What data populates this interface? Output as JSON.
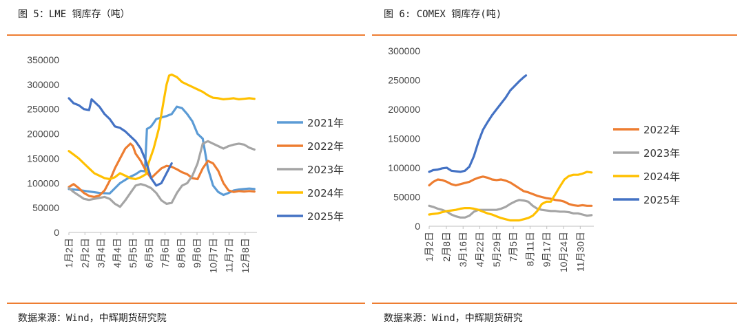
{
  "left": {
    "title": "图 5：LME 铜库存（吨）",
    "source": "数据来源：Wind，中辉期货研究院"
  },
  "right": {
    "title": "图 6:  COMEX 铜库存(吨)",
    "source": "数据来源：Wind，中辉期货研究"
  },
  "colors": {
    "rule": "#ee7d31"
  },
  "chart_data": [
    {
      "type": "line",
      "title": "",
      "xlabel": "",
      "ylabel": "",
      "ylim": [
        0,
        350000
      ],
      "yticks": [
        "350000",
        "300000",
        "250000",
        "200000",
        "150000",
        "100000",
        "50000",
        "0"
      ],
      "yticks_values": [
        350000,
        300000,
        250000,
        200000,
        150000,
        100000,
        50000,
        0
      ],
      "xticks": [
        "1月2日",
        "2月2日",
        "3月4日",
        "4月4日",
        "5月5日",
        "6月5日",
        "7月6日",
        "8月6日",
        "9月6日",
        "10月7日",
        "11月7日",
        "12月8日"
      ],
      "xticks_day": [
        1,
        32,
        63,
        94,
        125,
        156,
        187,
        218,
        249,
        280,
        311,
        342
      ],
      "x_range": [
        1,
        365
      ],
      "legend_position": "right",
      "series": [
        {
          "name": "2021年",
          "color": "#5b9bd5",
          "x": [
            1,
            20,
            40,
            60,
            80,
            100,
            120,
            130,
            140,
            148,
            152,
            156,
            160,
            165,
            170,
            180,
            190,
            200,
            210,
            220,
            230,
            240,
            250,
            260,
            270,
            280,
            290,
            300,
            310,
            320,
            330,
            340,
            350,
            360
          ],
          "y": [
            88000,
            86000,
            83000,
            80000,
            79000,
            100000,
            113000,
            118000,
            125000,
            124000,
            210000,
            212000,
            215000,
            222000,
            230000,
            233000,
            236000,
            240000,
            255000,
            252000,
            240000,
            225000,
            200000,
            190000,
            130000,
            95000,
            82000,
            76000,
            80000,
            85000,
            87000,
            88000,
            89000,
            88000
          ]
        },
        {
          "name": "2022年",
          "color": "#ed7d31",
          "x": [
            1,
            10,
            20,
            30,
            40,
            50,
            60,
            70,
            80,
            90,
            100,
            110,
            120,
            125,
            130,
            140,
            150,
            160,
            170,
            180,
            190,
            200,
            210,
            220,
            230,
            240,
            250,
            260,
            270,
            280,
            290,
            300,
            310,
            320,
            330,
            340,
            350,
            360
          ],
          "y": [
            92000,
            98000,
            90000,
            80000,
            74000,
            72000,
            75000,
            85000,
            105000,
            130000,
            150000,
            170000,
            180000,
            175000,
            160000,
            145000,
            125000,
            110000,
            120000,
            130000,
            135000,
            133000,
            128000,
            122000,
            118000,
            110000,
            108000,
            130000,
            145000,
            140000,
            125000,
            100000,
            85000,
            82000,
            84000,
            83000,
            84000,
            83000
          ]
        },
        {
          "name": "2023年",
          "color": "#a5a5a5",
          "x": [
            1,
            10,
            20,
            30,
            40,
            50,
            60,
            70,
            80,
            90,
            100,
            110,
            120,
            130,
            140,
            150,
            160,
            170,
            180,
            190,
            200,
            210,
            220,
            230,
            240,
            250,
            260,
            270,
            280,
            290,
            300,
            310,
            320,
            330,
            340,
            350,
            360
          ],
          "y": [
            90000,
            82000,
            75000,
            68000,
            66000,
            68000,
            70000,
            72000,
            68000,
            58000,
            52000,
            65000,
            80000,
            95000,
            98000,
            95000,
            90000,
            80000,
            65000,
            58000,
            60000,
            80000,
            95000,
            100000,
            115000,
            140000,
            180000,
            185000,
            180000,
            175000,
            170000,
            175000,
            178000,
            180000,
            178000,
            172000,
            168000
          ]
        },
        {
          "name": "2024年",
          "color": "#ffc000",
          "x": [
            1,
            10,
            20,
            30,
            40,
            50,
            60,
            70,
            80,
            90,
            100,
            110,
            120,
            130,
            140,
            150,
            155,
            160,
            165,
            170,
            175,
            180,
            185,
            190,
            195,
            200,
            210,
            220,
            230,
            240,
            250,
            260,
            270,
            280,
            290,
            300,
            310,
            320,
            330,
            340,
            350,
            360
          ],
          "y": [
            165000,
            158000,
            150000,
            140000,
            130000,
            120000,
            115000,
            110000,
            108000,
            112000,
            120000,
            115000,
            110000,
            108000,
            112000,
            118000,
            140000,
            155000,
            170000,
            190000,
            210000,
            240000,
            270000,
            300000,
            318000,
            320000,
            315000,
            305000,
            300000,
            295000,
            290000,
            285000,
            278000,
            273000,
            272000,
            270000,
            271000,
            272000,
            270000,
            271000,
            272000,
            271000
          ]
        },
        {
          "name": "2025年",
          "color": "#4472c4",
          "x": [
            1,
            10,
            20,
            30,
            40,
            45,
            50,
            60,
            70,
            80,
            90,
            100,
            110,
            120,
            130,
            140,
            150,
            160,
            170,
            180,
            190,
            200
          ],
          "y": [
            272000,
            262000,
            258000,
            250000,
            248000,
            270000,
            265000,
            255000,
            240000,
            230000,
            215000,
            212000,
            205000,
            195000,
            185000,
            170000,
            145000,
            110000,
            95000,
            100000,
            120000,
            140000
          ]
        }
      ]
    },
    {
      "type": "line",
      "title": "",
      "xlabel": "",
      "ylabel": "",
      "ylim": [
        0,
        300000
      ],
      "yticks": [
        "300000",
        "250000",
        "200000",
        "150000",
        "100000",
        "50000",
        "0"
      ],
      "yticks_values": [
        300000,
        250000,
        200000,
        150000,
        100000,
        50000,
        0
      ],
      "xticks": [
        "1月2日",
        "2月8日",
        "3月16日",
        "4月22日",
        "5月29日",
        "7月5日",
        "8月11日",
        "9月17日",
        "10月24日",
        "11月30日"
      ],
      "xticks_day": [
        1,
        39,
        76,
        113,
        150,
        187,
        224,
        261,
        298,
        335
      ],
      "x_range": [
        1,
        365
      ],
      "legend_position": "right",
      "series": [
        {
          "name": "2022年",
          "color": "#ed7d31",
          "x": [
            1,
            10,
            20,
            30,
            40,
            50,
            60,
            70,
            80,
            90,
            100,
            110,
            120,
            130,
            140,
            150,
            160,
            170,
            180,
            190,
            200,
            210,
            220,
            230,
            240,
            250,
            260,
            270,
            280,
            290,
            300,
            310,
            320,
            330,
            340,
            350,
            360
          ],
          "y": [
            70000,
            76000,
            80000,
            79000,
            76000,
            72000,
            70000,
            72000,
            74000,
            76000,
            80000,
            83000,
            85000,
            83000,
            80000,
            79000,
            80000,
            78000,
            75000,
            70000,
            65000,
            60000,
            58000,
            55000,
            52000,
            50000,
            48000,
            47000,
            45000,
            44000,
            42000,
            38000,
            36000,
            35000,
            36000,
            35000,
            35000
          ]
        },
        {
          "name": "2023年",
          "color": "#a5a5a5",
          "x": [
            1,
            10,
            20,
            30,
            40,
            50,
            60,
            70,
            80,
            90,
            100,
            110,
            120,
            130,
            140,
            150,
            160,
            170,
            180,
            190,
            200,
            210,
            220,
            230,
            240,
            250,
            260,
            270,
            280,
            290,
            300,
            310,
            320,
            330,
            340,
            350,
            360
          ],
          "y": [
            35000,
            33000,
            30000,
            28000,
            25000,
            20000,
            17000,
            15000,
            15000,
            18000,
            25000,
            28000,
            28000,
            28000,
            28000,
            28000,
            30000,
            33000,
            38000,
            42000,
            45000,
            44000,
            42000,
            35000,
            30000,
            28000,
            27000,
            26000,
            26000,
            25000,
            25000,
            24000,
            22000,
            22000,
            20000,
            18000,
            19000
          ]
        },
        {
          "name": "2024年",
          "color": "#ffc000",
          "x": [
            1,
            10,
            20,
            30,
            40,
            50,
            60,
            70,
            80,
            90,
            100,
            110,
            120,
            130,
            140,
            150,
            160,
            170,
            180,
            190,
            200,
            210,
            220,
            230,
            240,
            250,
            260,
            270,
            280,
            290,
            300,
            310,
            320,
            330,
            340,
            350,
            360
          ],
          "y": [
            20000,
            21000,
            22000,
            24000,
            26000,
            27000,
            28000,
            30000,
            31000,
            31000,
            30000,
            28000,
            25000,
            22000,
            20000,
            17000,
            14000,
            12000,
            10000,
            10000,
            10000,
            12000,
            14000,
            18000,
            26000,
            38000,
            42000,
            42000,
            55000,
            68000,
            80000,
            86000,
            88000,
            88000,
            90000,
            93000,
            92000
          ]
        },
        {
          "name": "2025年",
          "color": "#4472c4",
          "x": [
            1,
            10,
            20,
            30,
            40,
            50,
            60,
            70,
            80,
            90,
            100,
            110,
            120,
            130,
            140,
            150,
            160,
            170,
            180,
            190,
            200,
            210,
            215
          ],
          "y": [
            93000,
            96000,
            97000,
            99000,
            100000,
            95000,
            94000,
            93000,
            95000,
            102000,
            120000,
            145000,
            165000,
            178000,
            190000,
            200000,
            210000,
            220000,
            232000,
            240000,
            248000,
            255000,
            258000
          ]
        }
      ]
    }
  ]
}
